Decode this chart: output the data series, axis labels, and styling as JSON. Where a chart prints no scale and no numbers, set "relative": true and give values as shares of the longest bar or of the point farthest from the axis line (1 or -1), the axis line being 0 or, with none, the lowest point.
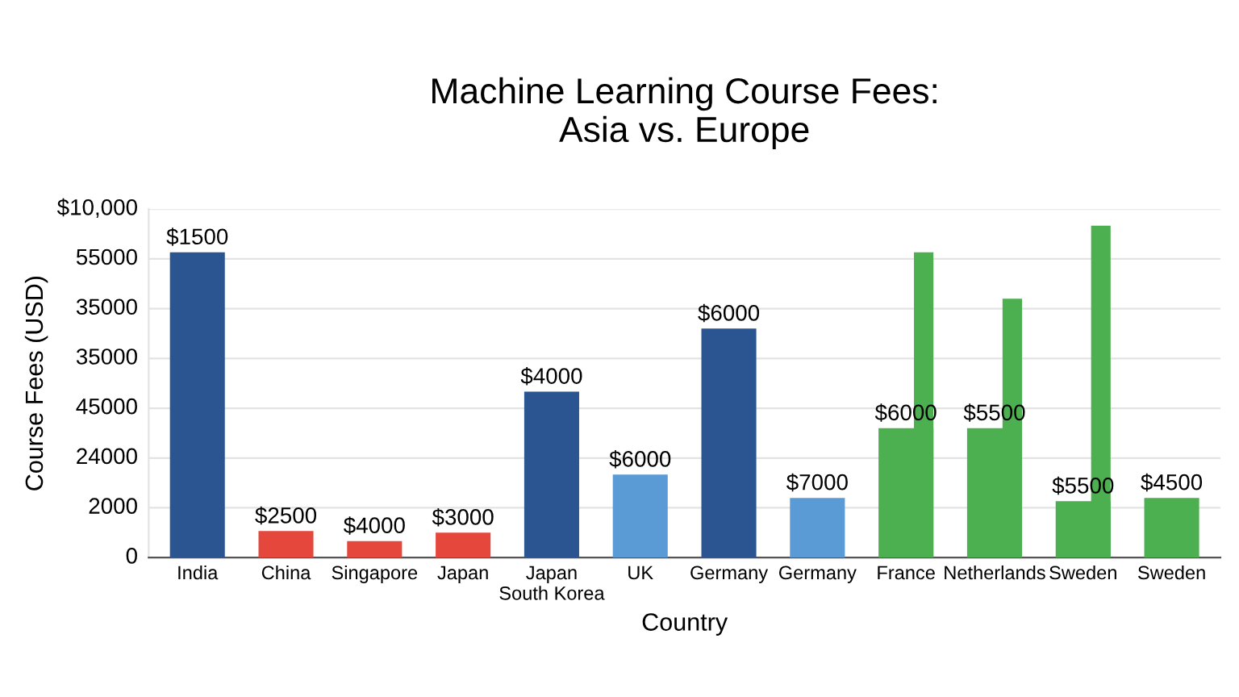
{
  "chart_data": {
    "type": "bar",
    "title": "Machine Learning Course Fees:\nAsia vs. Europe",
    "xlabel": "Country",
    "ylabel": "Course Fees (USD)",
    "categories": [
      "India",
      "China",
      "Singapore",
      "Japan",
      "Japan\nSouth Korea",
      "UK",
      "Germany",
      "Germany",
      "France",
      "Netherlands",
      "Sweden",
      "Sweden"
    ],
    "relative": true,
    "series": [
      {
        "colors": [
          "#2b5591",
          "#e5473c",
          "#e5473c",
          "#e5473c",
          "#2b5591",
          "#5b9bd5",
          "#2b5591",
          "#5b9bd5",
          "#4caf50",
          "#4caf50",
          "#4caf50",
          "#4caf50"
        ],
        "values": [
          0.92,
          0.08,
          0.05,
          0.075,
          0.5,
          0.25,
          0.69,
          0.18,
          0.39,
          0.39,
          0.17,
          0.18
        ]
      },
      {
        "color": "#4caf50",
        "values": [
          null,
          null,
          null,
          null,
          null,
          null,
          null,
          null,
          0.92,
          0.78,
          1,
          null
        ]
      }
    ],
    "annotations": [
      "0",
      "2000",
      "24000",
      "45000",
      "35000",
      "35000",
      "55000",
      "$10,000",
      {
        "text": "$1500",
        "x": "India",
        "y": 0.92
      },
      {
        "text": "$2500",
        "x": "China",
        "y": 0.08
      },
      {
        "text": "$4000",
        "x": "Singapore",
        "y": 0.05
      },
      {
        "text": "$3000",
        "x": "Japan",
        "y": 0.075
      },
      {
        "text": "$4000",
        "x": "Japan\nSouth Korea",
        "y": 0.5
      },
      {
        "text": "$6000",
        "x": "UK",
        "y": 0.25
      },
      {
        "text": "$6000",
        "x": "Germany",
        "y": 0.69
      },
      {
        "text": "$6000",
        "x": "France",
        "y": 0.39
      },
      {
        "text": "$5500",
        "x": "Netherlands",
        "y": 0.39
      },
      {
        "text": "$5500",
        "x": "Sweden",
        "y": 0.17
      },
      {
        "text": "$4500",
        "x": "Sweden",
        "y": 0.18
      },
      "$7000"
    ],
    "grid": "y",
    "legend": false
  }
}
